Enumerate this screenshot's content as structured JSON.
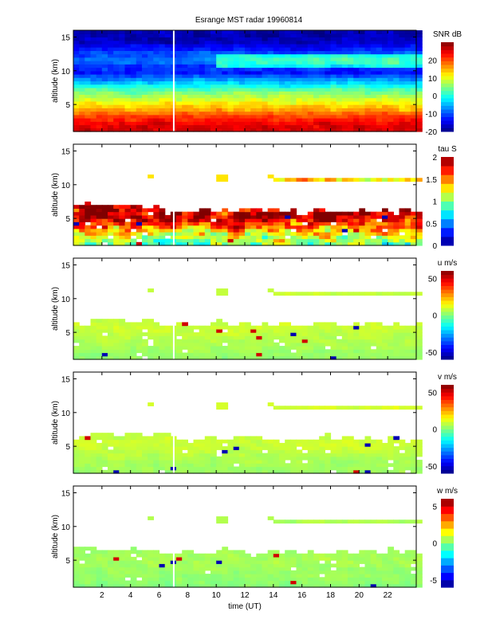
{
  "title": "Esrange MST radar 19960814",
  "xlabel": "time (UT)",
  "chart_data": [
    {
      "type": "heatmap",
      "name": "snr",
      "colorbar_label": "SNR dB",
      "clim": [
        -20,
        30
      ],
      "cticks": [
        -20,
        -10,
        0,
        10,
        20
      ],
      "xlim": [
        0,
        24
      ],
      "ylim": [
        1,
        16
      ],
      "xticks": [
        2,
        4,
        6,
        8,
        10,
        12,
        14,
        16,
        18,
        20,
        22
      ],
      "yticks": [
        5,
        10,
        15
      ],
      "ylabel": "altitude (km)",
      "coverage": "full",
      "profile_alt": [
        1,
        2,
        3,
        4,
        5,
        6,
        7,
        8,
        9,
        10,
        11,
        12,
        13,
        14,
        15,
        16
      ],
      "profile_val": [
        26,
        25,
        22,
        17,
        13,
        8,
        4,
        -2,
        -8,
        -14,
        -5,
        -4,
        -12,
        -16,
        -17,
        -18
      ],
      "noise": 4
    },
    {
      "type": "heatmap",
      "name": "tau",
      "colorbar_label": "tau S",
      "clim": [
        0,
        2
      ],
      "cticks": [
        0,
        0.5,
        1,
        1.5,
        2
      ],
      "xlim": [
        0,
        24
      ],
      "ylim": [
        1,
        16
      ],
      "xticks": [
        2,
        4,
        6,
        8,
        10,
        12,
        14,
        16,
        18,
        20,
        22
      ],
      "yticks": [
        5,
        10,
        15
      ],
      "ylabel": "altitude (km)",
      "coverage": "partial",
      "profile_alt": [
        1,
        2,
        3,
        4,
        5,
        6,
        7
      ],
      "profile_val": [
        0.9,
        1.1,
        1.3,
        1.6,
        1.9,
        1.9,
        1.8
      ],
      "strip_val": 1.3,
      "noise": 0.6
    },
    {
      "type": "heatmap",
      "name": "u",
      "colorbar_label": "u m/s",
      "clim": [
        -60,
        60
      ],
      "cticks": [
        -50,
        0,
        50
      ],
      "xlim": [
        0,
        24
      ],
      "ylim": [
        1,
        16
      ],
      "xticks": [
        2,
        4,
        6,
        8,
        10,
        12,
        14,
        16,
        18,
        20,
        22
      ],
      "yticks": [
        5,
        10,
        15
      ],
      "ylabel": "altitude (km)",
      "coverage": "partial",
      "profile_alt": [
        1,
        2,
        3,
        4,
        5,
        6,
        7
      ],
      "profile_val": [
        2,
        3,
        5,
        6,
        8,
        9,
        8
      ],
      "strip_val": 8,
      "noise": 4
    },
    {
      "type": "heatmap",
      "name": "v",
      "colorbar_label": "v m/s",
      "clim": [
        -60,
        60
      ],
      "cticks": [
        -50,
        0,
        50
      ],
      "xlim": [
        0,
        24
      ],
      "ylim": [
        1,
        16
      ],
      "xticks": [
        2,
        4,
        6,
        8,
        10,
        12,
        14,
        16,
        18,
        20,
        22
      ],
      "yticks": [
        5,
        10,
        15
      ],
      "ylabel": "altitude (km)",
      "coverage": "partial",
      "profile_alt": [
        1,
        2,
        3,
        4,
        5,
        6,
        7
      ],
      "profile_val": [
        3,
        4,
        5,
        7,
        9,
        9,
        8
      ],
      "strip_val": 10,
      "noise": 4
    },
    {
      "type": "heatmap",
      "name": "w",
      "colorbar_label": "w m/s",
      "clim": [
        -6,
        6
      ],
      "cticks": [
        -5,
        0,
        5
      ],
      "xlim": [
        0,
        24
      ],
      "ylim": [
        1,
        16
      ],
      "xticks": [
        2,
        4,
        6,
        8,
        10,
        12,
        14,
        16,
        18,
        20,
        22
      ],
      "yticks": [
        5,
        10,
        15
      ],
      "ylabel": "altitude (km)",
      "coverage": "partial",
      "profile_alt": [
        1,
        2,
        3,
        4,
        5,
        6,
        7
      ],
      "profile_val": [
        0,
        0.2,
        0.3,
        0.4,
        0.5,
        0.4,
        0.4
      ],
      "strip_val": 0.6,
      "noise": 0.4
    }
  ]
}
